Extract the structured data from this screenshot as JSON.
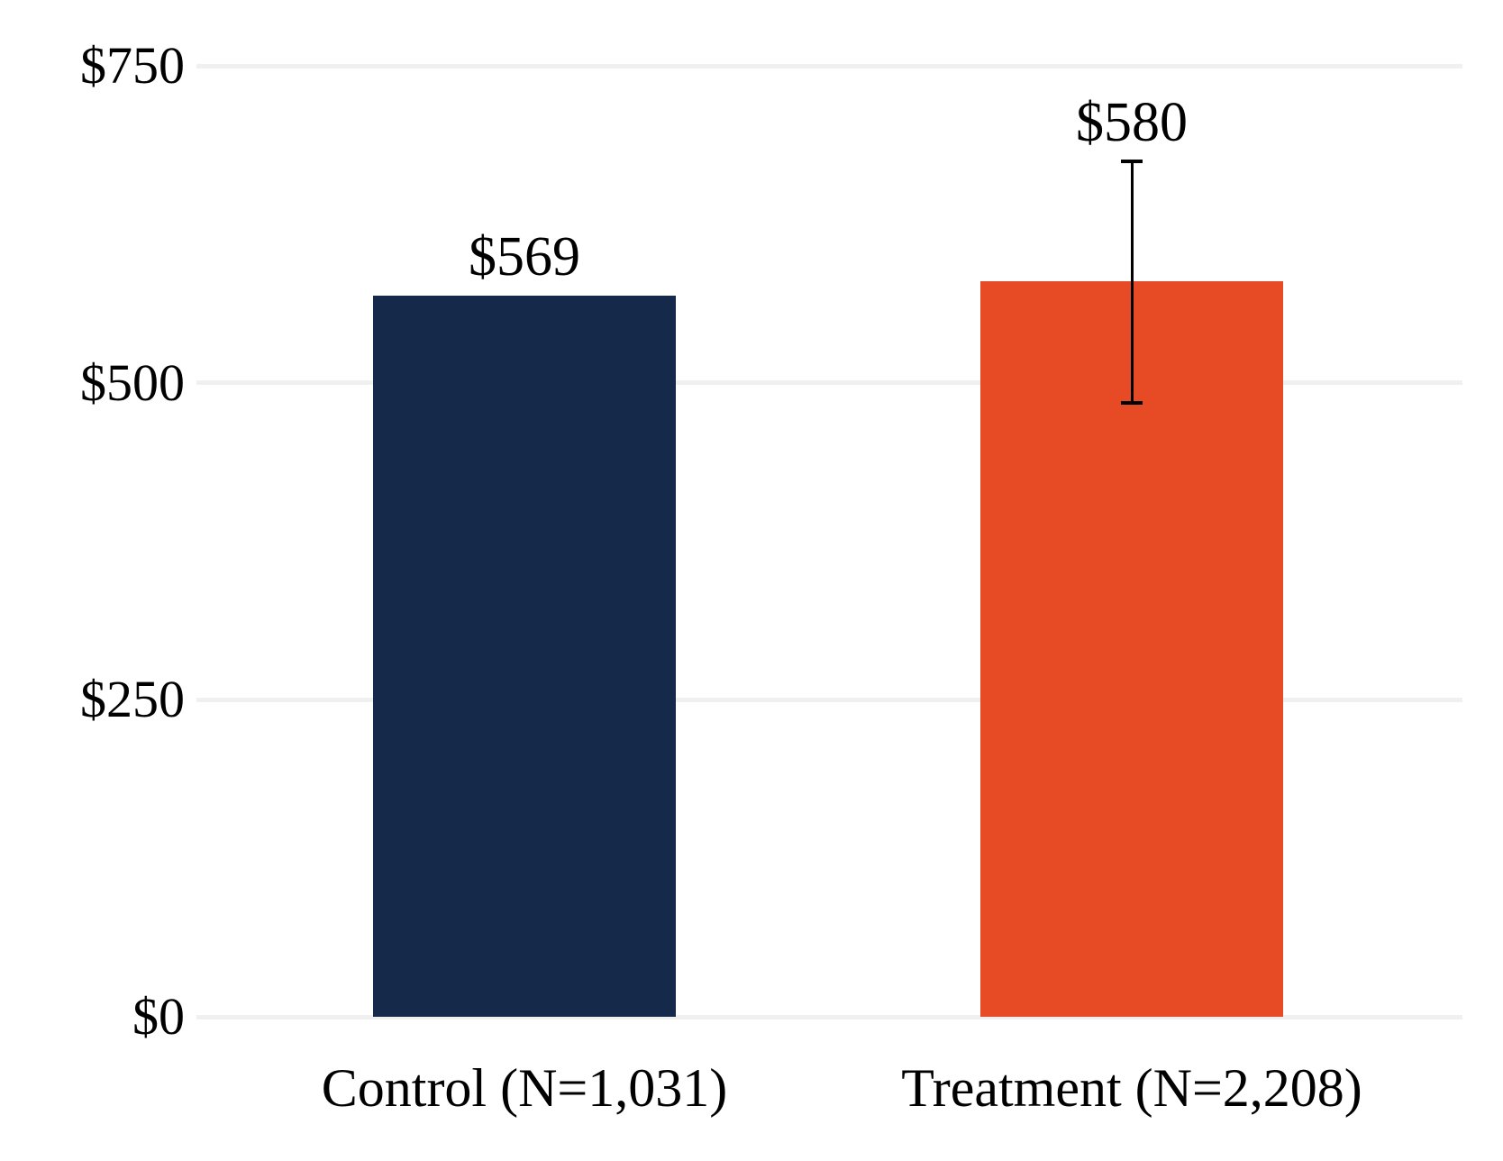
{
  "chart_data": {
    "type": "bar",
    "title": "",
    "legend": "none",
    "categories": [
      "Control (N=1,031)",
      "Treatment (N=2,208)"
    ],
    "bar_names": [
      "control",
      "treatment"
    ],
    "values": [
      569,
      580
    ],
    "value_labels": [
      "$569",
      "$580"
    ],
    "bar_colors": [
      "#15294b",
      "#e64b26"
    ],
    "error_bars": [
      null,
      {
        "low": 484,
        "high": 675
      }
    ],
    "error_bar_color": "#000000",
    "y_axis": {
      "ticks": [
        0,
        250,
        500,
        750
      ],
      "tick_labels": [
        "$0",
        "$250",
        "$500",
        "$750"
      ],
      "range": [
        0,
        750
      ]
    },
    "x_axis": {
      "labels": [
        "Control (N=1,031)",
        "Treatment (N=2,208)"
      ]
    },
    "grid": {
      "horizontal": true,
      "vertical": false,
      "color": "#f0f0f0"
    },
    "colors": {
      "background": "#ffffff",
      "text": "#000000"
    }
  }
}
